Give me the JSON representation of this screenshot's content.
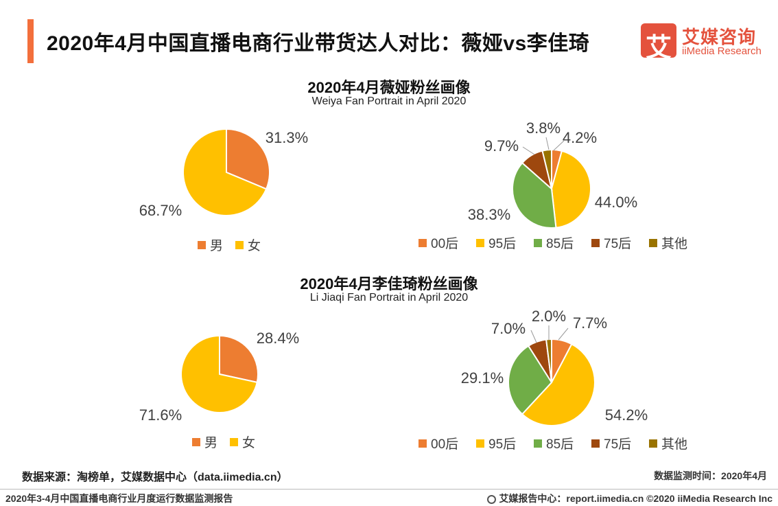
{
  "header": {
    "title": "2020年4月中国直播电商行业带货达人对比：薇娅vs李佳琦",
    "logo_char": "艾",
    "logo_cn": "艾媒咨询",
    "logo_en": "iiMedia Research"
  },
  "sections": [
    {
      "title": "2020年4月薇娅粉丝画像",
      "subtitle": "Weiya Fan Portrait in April 2020"
    },
    {
      "title": "2020年4月李佳琦粉丝画像",
      "subtitle": "Li Jiaqi Fan Portrait in April 2020"
    }
  ],
  "chart_data": [
    {
      "type": "pie",
      "title": "2020年4月薇娅粉丝画像",
      "categories": [
        "男",
        "女"
      ],
      "values": [
        31.3,
        68.7
      ],
      "labels": [
        "31.3%",
        "68.7%"
      ],
      "colors": [
        "#ed7d31",
        "#ffc000"
      ],
      "legend": "bottom"
    },
    {
      "type": "pie",
      "title": "2020年4月薇娅粉丝画像",
      "categories": [
        "00后",
        "95后",
        "85后",
        "75后",
        "其他"
      ],
      "values": [
        4.2,
        44.0,
        38.3,
        9.7,
        3.8
      ],
      "labels": [
        "4.2%",
        "44.0%",
        "38.3%",
        "9.7%",
        "3.8%"
      ],
      "colors": [
        "#ed7d31",
        "#ffc000",
        "#70ad47",
        "#9e480e",
        "#997300"
      ],
      "legend": "bottom"
    },
    {
      "type": "pie",
      "title": "2020年4月李佳琦粉丝画像",
      "categories": [
        "男",
        "女"
      ],
      "values": [
        28.4,
        71.6
      ],
      "labels": [
        "28.4%",
        "71.6%"
      ],
      "colors": [
        "#ed7d31",
        "#ffc000"
      ],
      "legend": "bottom"
    },
    {
      "type": "pie",
      "title": "2020年4月李佳琦粉丝画像",
      "categories": [
        "00后",
        "95后",
        "85后",
        "75后",
        "其他"
      ],
      "values": [
        7.7,
        54.2,
        29.1,
        7.0,
        2.0
      ],
      "labels": [
        "7.7%",
        "54.2%",
        "29.1%",
        "7.0%",
        "2.0%"
      ],
      "colors": [
        "#ed7d31",
        "#ffc000",
        "#70ad47",
        "#9e480e",
        "#997300"
      ],
      "legend": "bottom"
    }
  ],
  "footer": {
    "source": "数据来源：淘榜单，艾媒数据中心（data.iimedia.cn）",
    "monitor_time": "数据监测时间：2020年4月",
    "report_name": "2020年3-4月中国直播电商行业月度运行数据监测报告",
    "copyright": "艾媒报告中心：report.iimedia.cn  ©2020  iiMedia Research  Inc"
  }
}
